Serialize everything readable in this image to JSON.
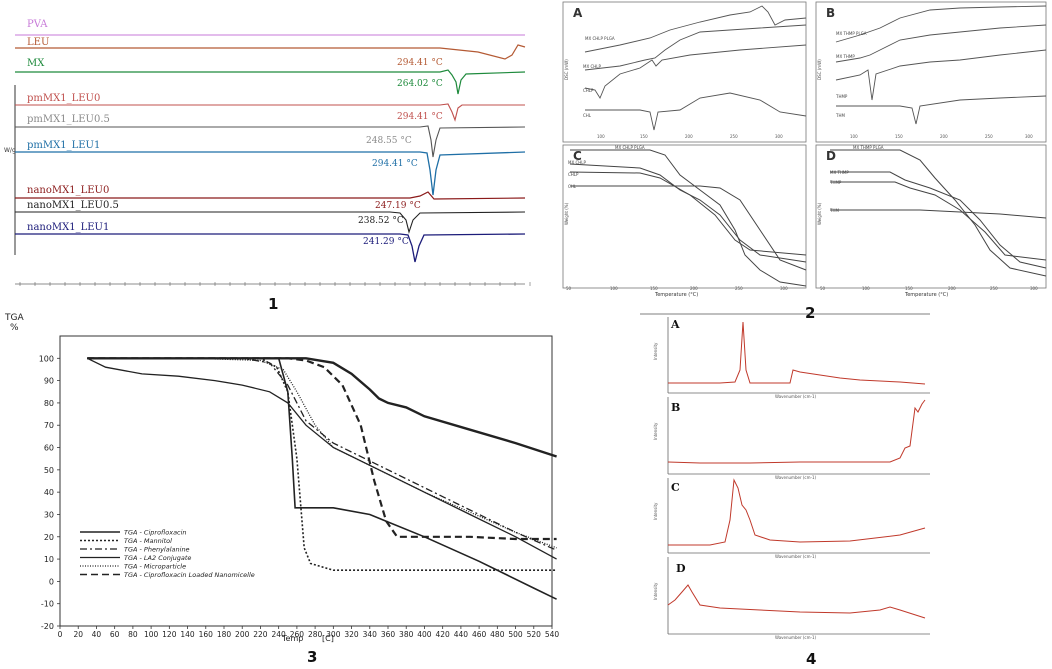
{
  "figure": {
    "panel_numbers": [
      "1",
      "2",
      "3",
      "4"
    ]
  },
  "chart_data": [
    {
      "id": "dsc_thermograms",
      "type": "line",
      "title": "",
      "ylabel": "W/g",
      "series_labels": [
        {
          "name": "PVA",
          "color": "#c77ad8"
        },
        {
          "name": "LEU",
          "color": "#b45a34"
        },
        {
          "name": "MX",
          "color": "#1e8a3c"
        },
        {
          "name": "pmMX1_LEU0",
          "color": "#c0504d"
        },
        {
          "name": "pmMX1_LEU0.5",
          "color": "#8a8a8a"
        },
        {
          "name": "pmMX1_LEU1",
          "color": "#1f6fa6"
        },
        {
          "name": "nanoMX1_LEU0",
          "color": "#8b1a1a"
        },
        {
          "name": "nanoMX1_LEU0.5",
          "color": "#222222"
        },
        {
          "name": "nanoMX1_LEU1",
          "color": "#1c1c7a"
        }
      ],
      "annotations": [
        {
          "text": "294.41 °C",
          "color": "#b45a34"
        },
        {
          "text": "264.02 °C",
          "color": "#1e8a3c"
        },
        {
          "text": "294.41 °C",
          "color": "#c0504d"
        },
        {
          "text": "248.55 °C",
          "color": "#8a8a8a"
        },
        {
          "text": "294.41 °C",
          "color": "#1f6fa6"
        },
        {
          "text": "247.19 °C",
          "color": "#8b1a1a"
        },
        {
          "text": "238.52 °C",
          "color": "#222222"
        },
        {
          "text": "241.29 °C",
          "color": "#1c1c7a"
        }
      ],
      "xlabel": ""
    },
    {
      "id": "dsc_tga_grid",
      "type": "line",
      "subpanels": [
        {
          "letter": "A",
          "ylabel": "DSC (mW)",
          "xlabel": "",
          "series": [
            "MX CHLP PLGA",
            "MX CHLP",
            "CHLP",
            "CHL"
          ]
        },
        {
          "letter": "B",
          "ylabel": "DSC (mW)",
          "xlabel": "",
          "series": [
            "MX THMP PLGA",
            "MX THMP",
            "THMP",
            "THM"
          ]
        },
        {
          "letter": "C",
          "ylabel": "Weight (%)",
          "xlabel": "Temperature (°C)",
          "series": [
            "MX CHLP PLGA",
            "MX CHLP",
            "CHLP",
            "CHL"
          ]
        },
        {
          "letter": "D",
          "ylabel": "Weight (%)",
          "xlabel": "Temperature (°C)",
          "series": [
            "MX THMP PLGA",
            "MX THMP",
            "THMP",
            "THM"
          ]
        }
      ],
      "x_ticks": [
        "50",
        "100",
        "150",
        "200",
        "250",
        "300"
      ]
    },
    {
      "id": "tga_main",
      "type": "line",
      "title_top": "TGA",
      "title_unit": "%",
      "xlabel": "Temp",
      "xunit": "[C]",
      "xlim": [
        0,
        540
      ],
      "ylim": [
        -20,
        110
      ],
      "x_ticks": [
        0,
        20,
        40,
        60,
        80,
        100,
        120,
        140,
        160,
        180,
        200,
        220,
        240,
        260,
        280,
        300,
        320,
        340,
        360,
        380,
        400,
        420,
        440,
        460,
        480,
        500,
        520,
        540
      ],
      "y_ticks": [
        100,
        90,
        80,
        70,
        60,
        50,
        40,
        30,
        20,
        10,
        0,
        -10,
        -20
      ],
      "series": [
        {
          "name": "TGA - Ciprofloxacin",
          "dash": "solid",
          "width": 1.6,
          "x": [
            30,
            150,
            200,
            240,
            250,
            255,
            258,
            300,
            340,
            400,
            460,
            520,
            545
          ],
          "y": [
            100,
            100,
            100,
            100,
            85,
            55,
            33,
            33,
            30,
            20,
            9,
            -3,
            -8
          ]
        },
        {
          "name": "TGA - Mannitol",
          "dash": "dot",
          "width": 1.6,
          "x": [
            30,
            150,
            220,
            238,
            250,
            260,
            268,
            275,
            300,
            350,
            450,
            545
          ],
          "y": [
            100,
            100,
            100,
            96,
            85,
            55,
            15,
            8,
            5,
            5,
            5,
            5
          ]
        },
        {
          "name": "TGA - Phenylalanine",
          "dash": "dashdot",
          "width": 1.3,
          "x": [
            30,
            150,
            200,
            230,
            250,
            270,
            300,
            350,
            400,
            450,
            500,
            545
          ],
          "y": [
            100,
            100,
            100,
            98,
            88,
            72,
            62,
            52,
            42,
            32,
            22,
            14
          ]
        },
        {
          "name": "TGA - LA2 Conjugate",
          "dash": "solid",
          "width": 1.3,
          "x": [
            30,
            50,
            90,
            130,
            170,
            200,
            230,
            250,
            270,
            300,
            350,
            400,
            450,
            500,
            545
          ],
          "y": [
            100,
            96,
            93,
            92,
            90,
            88,
            85,
            80,
            70,
            60,
            50,
            40,
            30,
            20,
            10
          ]
        },
        {
          "name": "TGA - Microparticle",
          "dash": "densedot",
          "width": 1.3,
          "x": [
            30,
            150,
            220,
            245,
            260,
            280,
            300,
            350,
            400,
            450,
            500,
            545
          ],
          "y": [
            100,
            100,
            99,
            95,
            85,
            70,
            60,
            50,
            40,
            31,
            22,
            15
          ]
        },
        {
          "name": "TGA - Ciprofloxacin Loaded Nanomicelle",
          "dash": "dash",
          "width": 2.2,
          "x": [
            30,
            150,
            250,
            270,
            290,
            310,
            330,
            345,
            358,
            370,
            400,
            450,
            500,
            545
          ],
          "y": [
            100,
            100,
            100,
            99,
            96,
            88,
            70,
            45,
            27,
            20,
            20,
            20,
            19,
            19
          ]
        },
        {
          "name": "",
          "dash": "solid",
          "width": 2.4,
          "x": [
            30,
            100,
            200,
            270,
            300,
            320,
            340,
            350,
            360,
            380,
            400,
            450,
            500,
            545
          ],
          "y": [
            100,
            100,
            100,
            100,
            98,
            93,
            86,
            82,
            80,
            78,
            74,
            68,
            62,
            56
          ]
        }
      ],
      "legend": [
        "TGA - Ciprofloxacin",
        "TGA - Mannitol",
        "TGA - Phenylalanine",
        "TGA - LA2 Conjugate",
        "TGA - Microparticle",
        "TGA - Ciprofloxacin Loaded Nanomicelle"
      ]
    },
    {
      "id": "spectra_stack",
      "type": "line",
      "subpanels": [
        {
          "letter": "A",
          "ylabel": "Intensity",
          "xlabel": "Wavenumber (cm-1)"
        },
        {
          "letter": "B",
          "ylabel": "Intensity",
          "xlabel": "Wavenumber (cm-1)"
        },
        {
          "letter": "C",
          "ylabel": "Intensity",
          "xlabel": "Wavenumber (cm-1)"
        },
        {
          "letter": "D",
          "ylabel": "Intensity",
          "xlabel": "Wavenumber (cm-1)"
        }
      ],
      "color": "#c0392b"
    }
  ]
}
